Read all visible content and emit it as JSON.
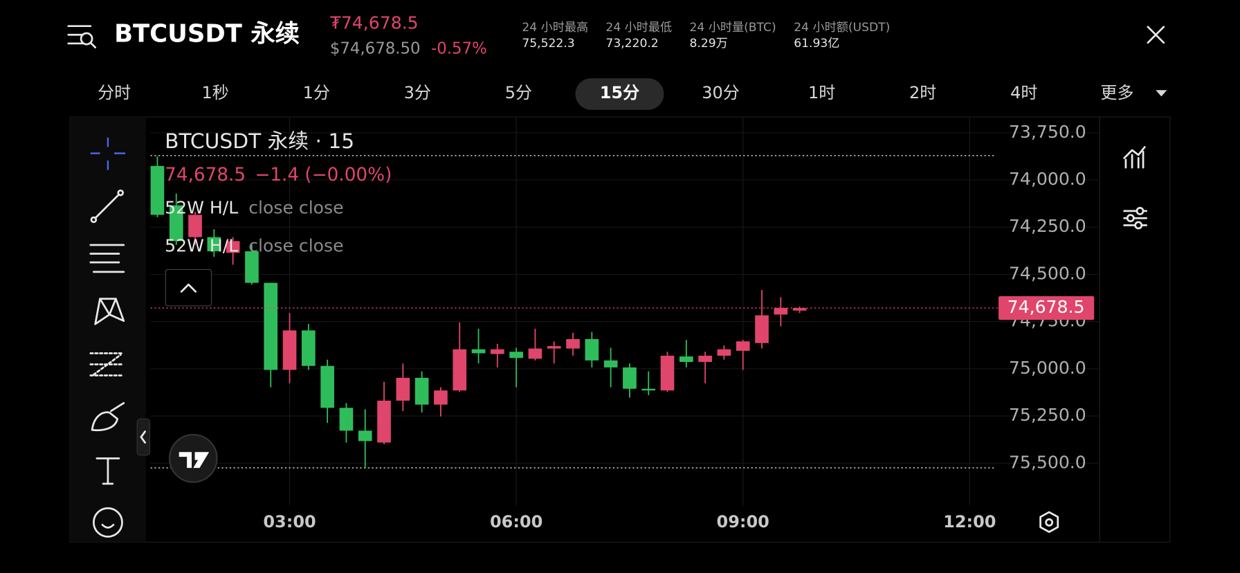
{
  "header": {
    "symbol": "BTCUSDT 永续",
    "price": "₮74,678.5",
    "usd_price": "$74,678.50",
    "change": "-0.57%",
    "stats": [
      {
        "label": "24 小时最高",
        "value": "75,522.3"
      },
      {
        "label": "24 小时最低",
        "value": "73,220.2"
      },
      {
        "label": "24 小时量(BTC)",
        "value": "8.29万"
      },
      {
        "label": "24 小时额(USDT)",
        "value": "61.93亿"
      }
    ]
  },
  "intervals": {
    "items": [
      "分时",
      "1秒",
      "1分",
      "3分",
      "5分",
      "15分",
      "30分",
      "1时",
      "2时",
      "4时",
      "更多"
    ],
    "selected_index": 5
  },
  "chart_data": {
    "type": "candlestick",
    "legend_title": "BTCUSDT 永续 · 15",
    "legend_change": "−1.4 (−0.00%)",
    "indicators": [
      {
        "name": "52W H/L",
        "params": "close close"
      },
      {
        "name": "52W H/L",
        "params": "close close"
      }
    ],
    "up_color": "#2fbd5b",
    "down_color": "#e0456b",
    "y_inverted": true,
    "grid": true,
    "x": [
      1.25,
      1.5,
      1.75,
      2,
      2.25,
      2.5,
      2.75,
      3,
      3.25,
      3.5,
      3.75,
      4,
      4.25,
      4.5,
      4.75,
      5,
      5.25,
      5.5,
      5.75,
      6,
      6.25,
      6.5,
      6.75,
      7,
      7.25,
      7.5,
      7.75,
      8,
      8.25,
      8.5,
      8.75,
      9,
      9.25,
      9.5,
      9.75
    ],
    "open": [
      73926,
      74135,
      74303,
      74303,
      74386,
      74378,
      74545,
      75006,
      74797,
      74985,
      75207,
      75328,
      75391,
      75169,
      75048,
      75190,
      75115,
      74897,
      74922,
      74910,
      74947,
      74893,
      74893,
      74843,
      74956,
      74993,
      75106,
      75115,
      74935,
      74964,
      74931,
      74905,
      74864,
      74713,
      74692
    ],
    "high": [
      74198,
      74344,
      74344,
      74407,
      74449,
      74554,
      75098,
      75077,
      75006,
      75287,
      75391,
      75525,
      75400,
      75224,
      75232,
      75253,
      75123,
      74972,
      74993,
      75098,
      74956,
      74972,
      74931,
      74993,
      75098,
      75153,
      75140,
      75123,
      74993,
      75077,
      74952,
      75006,
      74893,
      74776,
      74705
    ],
    "low": [
      73876,
      74072,
      74169,
      74261,
      74303,
      74344,
      74545,
      74705,
      74763,
      74952,
      75182,
      75215,
      75069,
      74972,
      75014,
      75098,
      74755,
      74788,
      74868,
      74889,
      74788,
      74855,
      74809,
      74805,
      74889,
      74972,
      75014,
      74910,
      74847,
      74910,
      74876,
      74847,
      74583,
      74621,
      74671
    ],
    "close": [
      74185,
      74324,
      74185,
      74378,
      74324,
      74545,
      75006,
      74797,
      74985,
      75207,
      75328,
      75383,
      75169,
      75048,
      75190,
      75115,
      74897,
      74918,
      74897,
      74943,
      74893,
      74880,
      74843,
      74956,
      74993,
      75106,
      75115,
      74931,
      74964,
      74931,
      74897,
      74855,
      74717,
      74678,
      74678.5
    ],
    "last_price": {
      "value": 74678.5,
      "label": "74,678.5"
    },
    "hl_lines": [
      73871,
      75525
    ],
    "xlim": [
      1.16,
      12.33
    ],
    "xticks": [
      {
        "value": 3,
        "label": "03:00"
      },
      {
        "value": 6,
        "label": "06:00"
      },
      {
        "value": 9,
        "label": "09:00"
      },
      {
        "value": 12,
        "label": "12:00"
      }
    ],
    "ylim": [
      73675,
      75726
    ],
    "yticks": [
      {
        "value": 73750,
        "label": "73,750.0"
      },
      {
        "value": 74000,
        "label": "74,000.0"
      },
      {
        "value": 74250,
        "label": "74,250.0"
      },
      {
        "value": 74500,
        "label": "74,500.0"
      },
      {
        "value": 74750,
        "label": "74,750.0"
      },
      {
        "value": 75000,
        "label": "75,000.0"
      },
      {
        "value": 75250,
        "label": "75,250.0"
      },
      {
        "value": 75500,
        "label": "75,500.0"
      }
    ]
  }
}
